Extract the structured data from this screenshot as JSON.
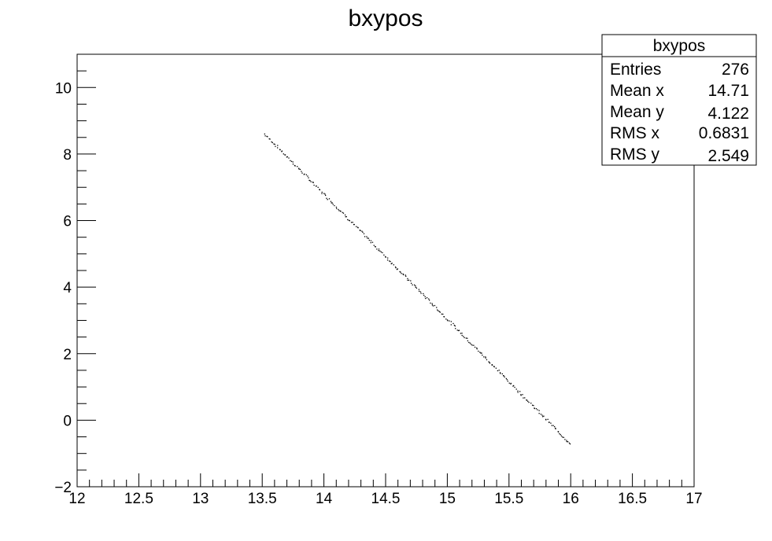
{
  "chart_data": {
    "type": "scatter",
    "title": "bxypos",
    "xlabel": "",
    "ylabel": "",
    "xlim": [
      12,
      17
    ],
    "ylim": [
      -2,
      11
    ],
    "x_ticks": [
      12,
      12.5,
      13,
      13.5,
      14,
      14.5,
      15,
      15.5,
      16,
      16.5,
      17
    ],
    "x_tick_labels": [
      "12",
      "12.5",
      "13",
      "13.5",
      "14",
      "14.5",
      "15",
      "15.5",
      "16",
      "16.5",
      "17"
    ],
    "y_ticks": [
      -2,
      0,
      2,
      4,
      6,
      8,
      10
    ],
    "y_tick_labels": [
      "−2",
      "0",
      "2",
      "4",
      "6",
      "8",
      "10"
    ],
    "grid": false,
    "legend_position": "top-right",
    "marker_color": "#000000",
    "segment": {
      "x_start": 13.52,
      "y_start": 8.6,
      "x_end": 16.0,
      "y_end": -0.72
    },
    "n_points": 276,
    "stats_box": {
      "title": "bxypos",
      "rows": [
        {
          "label": "Entries",
          "value": "276"
        },
        {
          "label": "Mean x",
          "value": "14.71"
        },
        {
          "label": "Mean y",
          "value": "4.122"
        },
        {
          "label": "RMS x",
          "value": "0.6831"
        },
        {
          "label": "RMS y",
          "value": "2.549"
        }
      ]
    }
  }
}
